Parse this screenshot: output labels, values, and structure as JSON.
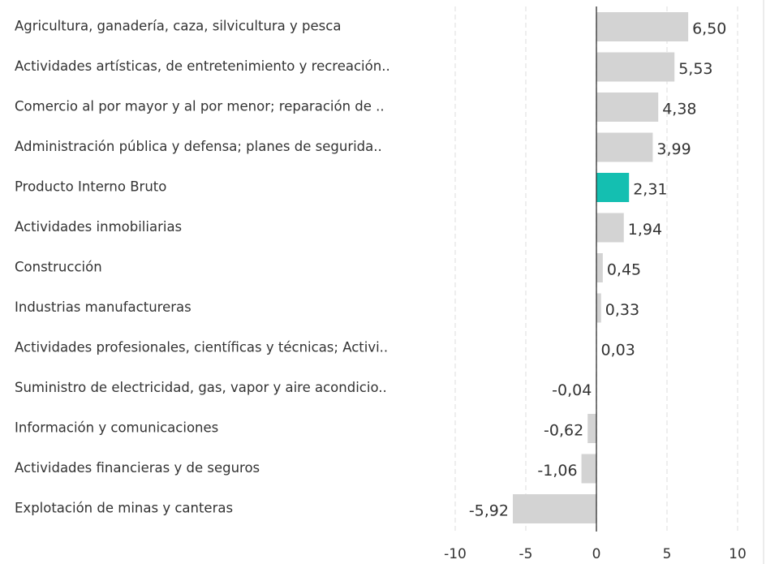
{
  "chart_data": {
    "type": "hbar",
    "categories": [
      "Agricultura, ganadería, caza, silvicultura y pesca",
      "Actividades artísticas, de entretenimiento y recreación..",
      "Comercio al por mayor y al por menor; reparación de ..",
      "Administración pública y defensa; planes de segurida..",
      "Producto Interno Bruto",
      "Actividades inmobiliarias",
      "Construcción",
      "Industrias manufactureras",
      "Actividades profesionales, científicas y técnicas; Activi..",
      "Suministro de electricidad, gas, vapor y aire acondicio..",
      "Información y comunicaciones",
      "Actividades financieras y de seguros",
      "Explotación de minas y canteras"
    ],
    "values": [
      6.5,
      5.53,
      4.38,
      3.99,
      2.31,
      1.94,
      0.45,
      0.33,
      0.03,
      -0.04,
      -0.62,
      -1.06,
      -5.92
    ],
    "value_labels": [
      "6,50",
      "5,53",
      "4,38",
      "3,99",
      "2,31",
      "1,94",
      "0,45",
      "0,33",
      "0,03",
      "-0,04",
      "-0,62",
      "-1,06",
      "-5,92"
    ],
    "colors": [
      "#d3d3d3",
      "#d3d3d3",
      "#d3d3d3",
      "#d3d3d3",
      "#14bfb1",
      "#d3d3d3",
      "#d3d3d3",
      "#d3d3d3",
      "#d3d3d3",
      "#d3d3d3",
      "#d3d3d3",
      "#d3d3d3",
      "#d3d3d3"
    ],
    "xlim": [
      -10,
      10
    ],
    "xticks": [
      -10,
      -5,
      0,
      5,
      10
    ],
    "grid": true
  }
}
